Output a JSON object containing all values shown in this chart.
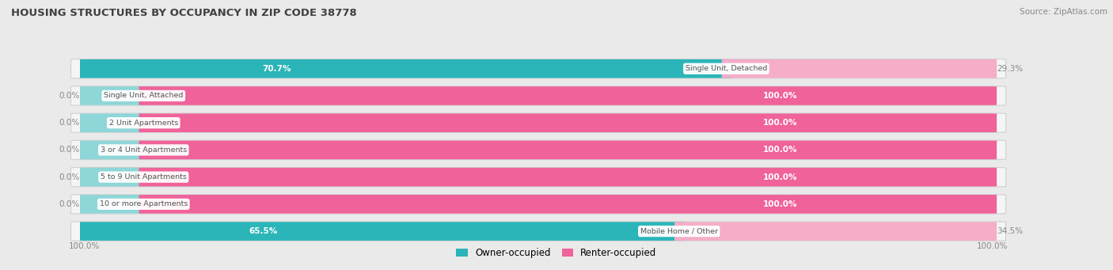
{
  "title": "HOUSING STRUCTURES BY OCCUPANCY IN ZIP CODE 38778",
  "source": "Source: ZipAtlas.com",
  "categories": [
    "Single Unit, Detached",
    "Single Unit, Attached",
    "2 Unit Apartments",
    "3 or 4 Unit Apartments",
    "5 to 9 Unit Apartments",
    "10 or more Apartments",
    "Mobile Home / Other"
  ],
  "owner_pct": [
    70.7,
    0.0,
    0.0,
    0.0,
    0.0,
    0.0,
    65.5
  ],
  "renter_pct": [
    29.3,
    100.0,
    100.0,
    100.0,
    100.0,
    100.0,
    34.5
  ],
  "owner_color": "#2bb5b8",
  "renter_color_dark": "#f0629a",
  "renter_color_light": "#f5adc8",
  "owner_color_stub": "#8ed6d8",
  "bg_color": "#eaeaea",
  "bar_bg_color": "#f5f5f5",
  "bar_edge_color": "#d0d0d0",
  "title_color": "#404040",
  "source_color": "#888888",
  "white_text": "#ffffff",
  "gray_text": "#888888",
  "label_text_color": "#555555",
  "figsize": [
    14.06,
    3.41
  ],
  "dpi": 100,
  "bar_height": 0.68,
  "legend_owner": "Owner-occupied",
  "legend_renter": "Renter-occupied",
  "axis_label_left": "100.0%",
  "axis_label_right": "100.0%"
}
